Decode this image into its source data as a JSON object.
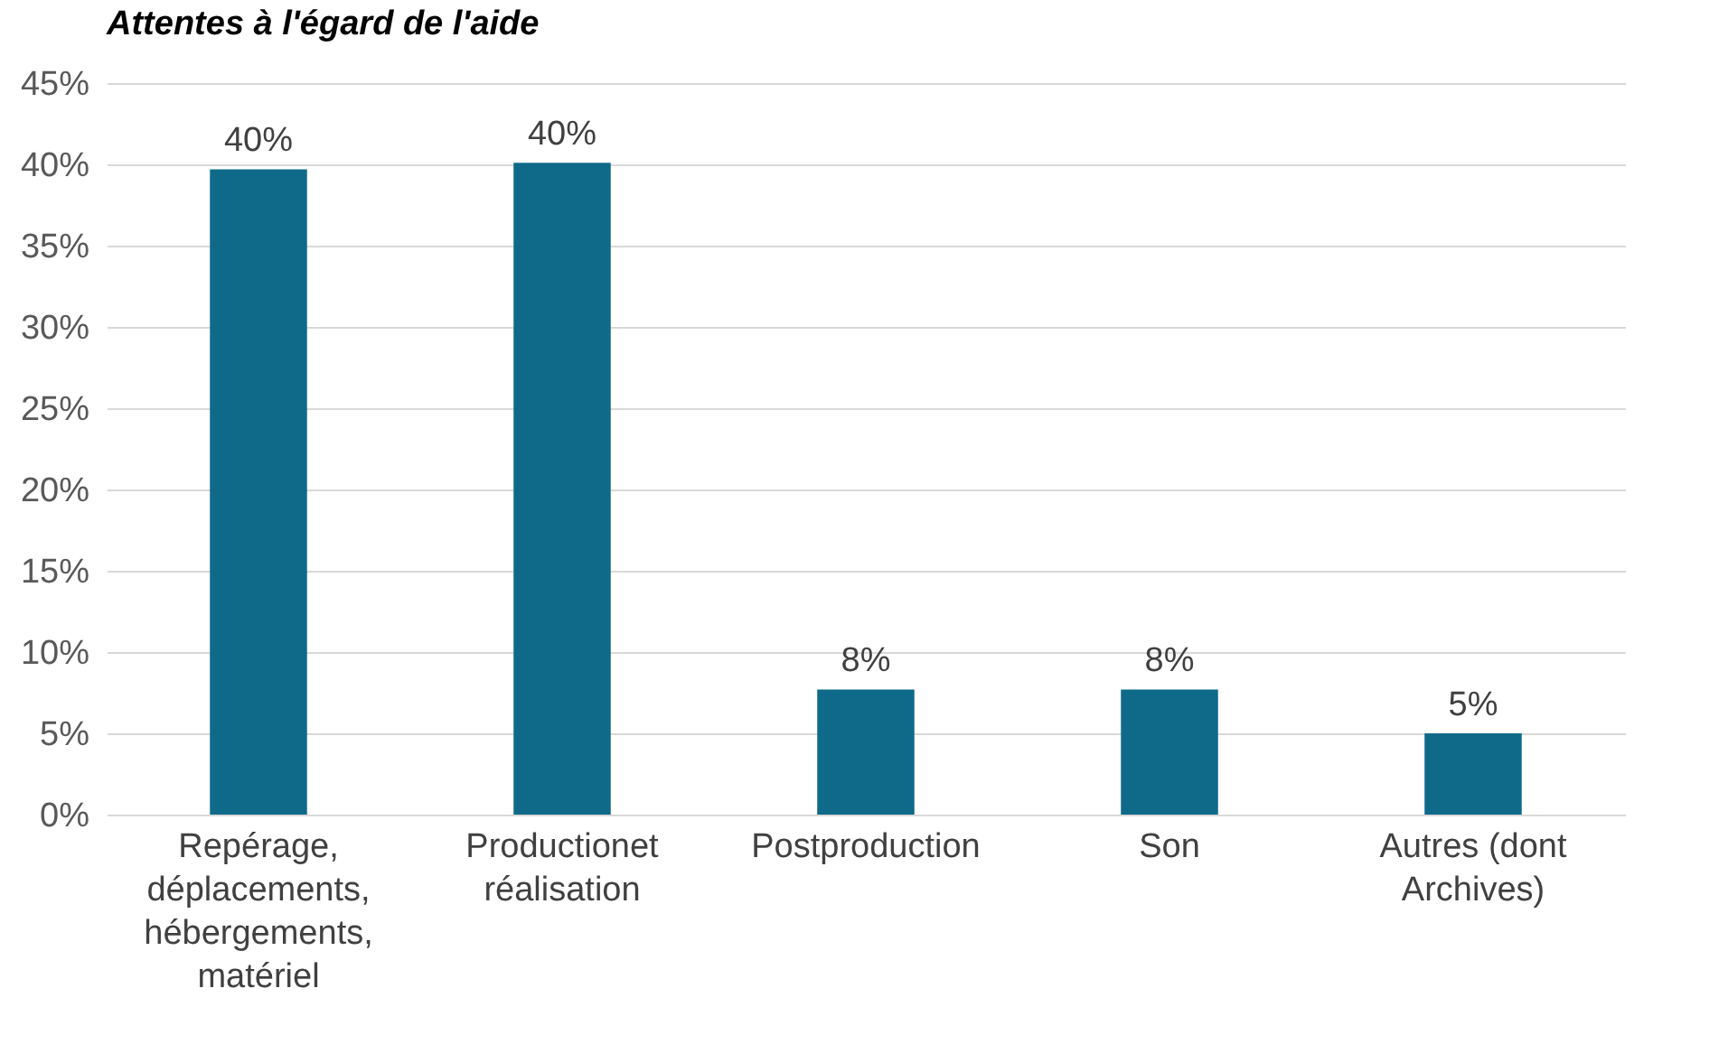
{
  "chart_data": {
    "type": "bar",
    "title": "Attentes à l'égard de l'aide",
    "categories": [
      "Repérage, déplacements, hébergements, matériel",
      "Productionet réalisation",
      "Postproduction",
      "Son",
      "Autres (dont Archives)"
    ],
    "values": [
      39.7,
      40.1,
      7.7,
      7.7,
      5.0
    ],
    "value_labels": [
      "40%",
      "40%",
      "8%",
      "8%",
      "5%"
    ],
    "color": "#0f6a8a",
    "ylim": [
      0,
      45
    ],
    "yticks": [
      {
        "value": 0,
        "label": "0%"
      },
      {
        "value": 5,
        "label": "5%"
      },
      {
        "value": 10,
        "label": "10%"
      },
      {
        "value": 15,
        "label": "15%"
      },
      {
        "value": 20,
        "label": "20%"
      },
      {
        "value": 25,
        "label": "25%"
      },
      {
        "value": 30,
        "label": "30%"
      },
      {
        "value": 35,
        "label": "35%"
      },
      {
        "value": 40,
        "label": "40%"
      },
      {
        "value": 45,
        "label": "45%"
      }
    ],
    "grid": "y"
  }
}
